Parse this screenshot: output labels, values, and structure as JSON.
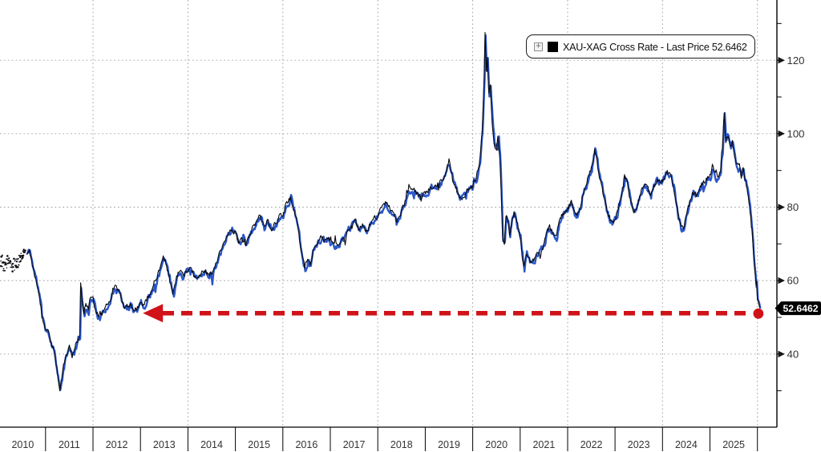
{
  "chart": {
    "legend": {
      "label": "XAU-XAG Cross Rate - Last Price 52.6462",
      "expand_glyph": "+",
      "swatch_color": "#000000"
    },
    "last_price_tag": "52.6462",
    "colors": {
      "series_black": "#08080e",
      "series_blue": "#2a57c8",
      "annotation_red": "#cf1318",
      "grid": "#9b9b9b",
      "axis": "#000000",
      "tick_label": "#333333",
      "tag_bg": "#000000",
      "tag_fg": "#ffffff"
    }
  },
  "chart_data": {
    "type": "line",
    "title": "XAU-XAG Cross Rate",
    "xlabel": "",
    "ylabel": "",
    "grid": "dotted",
    "legend_position": "top-right",
    "x_ticks": [
      "2010",
      "2011",
      "2012",
      "2013",
      "2014",
      "2015",
      "2016",
      "2017",
      "2018",
      "2019",
      "2020",
      "2021",
      "2022",
      "2023",
      "2024",
      "2025"
    ],
    "y_ticks": [
      40,
      60,
      80,
      100,
      120
    ],
    "y_minor_ticks": [
      30,
      50,
      70,
      90,
      110,
      130
    ],
    "xlim": [
      2010.04,
      2026.41
    ],
    "ylim": [
      20.1,
      136.4
    ],
    "annotations": [
      {
        "type": "dashed-arrow-left",
        "level": 52.6462,
        "from_year": 2026.0,
        "to_year": 2013.05
      },
      {
        "type": "endpoint-dot",
        "level": 52.6462,
        "year": 2026.02
      },
      {
        "type": "axis-price-label",
        "text": "52.6462"
      }
    ],
    "series": [
      {
        "name": "XAU-XAG Cross Rate",
        "last_price": 52.6462,
        "scatter_until": 2010.59,
        "points": [
          [
            2010.04,
            64.0
          ],
          [
            2010.1,
            66.0
          ],
          [
            2010.16,
            63.5
          ],
          [
            2010.22,
            65.0
          ],
          [
            2010.28,
            65.5
          ],
          [
            2010.34,
            64.0
          ],
          [
            2010.4,
            66.0
          ],
          [
            2010.46,
            65.0
          ],
          [
            2010.52,
            66.5
          ],
          [
            2010.58,
            67.0
          ],
          [
            2010.6,
            67.5
          ],
          [
            2010.66,
            68.5
          ],
          [
            2010.72,
            64.5
          ],
          [
            2010.79,
            61.0
          ],
          [
            2010.86,
            56.5
          ],
          [
            2010.93,
            50.5
          ],
          [
            2011.0,
            47.0
          ],
          [
            2011.06,
            45.5
          ],
          [
            2011.12,
            43.0
          ],
          [
            2011.18,
            41.0
          ],
          [
            2011.24,
            36.0
          ],
          [
            2011.3,
            29.8
          ],
          [
            2011.34,
            33.5
          ],
          [
            2011.38,
            36.5
          ],
          [
            2011.44,
            40.0
          ],
          [
            2011.5,
            42.0
          ],
          [
            2011.56,
            39.5
          ],
          [
            2011.62,
            41.5
          ],
          [
            2011.68,
            44.0
          ],
          [
            2011.72,
            44.5
          ],
          [
            2011.74,
            59.0
          ],
          [
            2011.77,
            54.0
          ],
          [
            2011.81,
            51.0
          ],
          [
            2011.85,
            54.0
          ],
          [
            2011.9,
            52.0
          ],
          [
            2011.95,
            55.5
          ],
          [
            2012.0,
            55.0
          ],
          [
            2012.06,
            52.0
          ],
          [
            2012.12,
            50.0
          ],
          [
            2012.18,
            50.5
          ],
          [
            2012.25,
            52.5
          ],
          [
            2012.32,
            54.0
          ],
          [
            2012.4,
            56.5
          ],
          [
            2012.48,
            58.5
          ],
          [
            2012.55,
            57.0
          ],
          [
            2012.62,
            53.5
          ],
          [
            2012.7,
            52.5
          ],
          [
            2012.78,
            53.5
          ],
          [
            2012.85,
            51.5
          ],
          [
            2012.92,
            52.5
          ],
          [
            2013.0,
            54.5
          ],
          [
            2013.08,
            53.0
          ],
          [
            2013.16,
            55.5
          ],
          [
            2013.24,
            57.5
          ],
          [
            2013.32,
            60.5
          ],
          [
            2013.4,
            63.0
          ],
          [
            2013.48,
            66.0
          ],
          [
            2013.55,
            64.0
          ],
          [
            2013.62,
            60.0
          ],
          [
            2013.68,
            57.0
          ],
          [
            2013.75,
            60.5
          ],
          [
            2013.82,
            62.5
          ],
          [
            2013.9,
            61.5
          ],
          [
            2013.96,
            62.5
          ],
          [
            2014.04,
            63.5
          ],
          [
            2014.12,
            61.5
          ],
          [
            2014.2,
            60.5
          ],
          [
            2014.28,
            62.0
          ],
          [
            2014.36,
            63.0
          ],
          [
            2014.44,
            61.5
          ],
          [
            2014.52,
            62.5
          ],
          [
            2014.6,
            65.5
          ],
          [
            2014.68,
            68.0
          ],
          [
            2014.76,
            70.5
          ],
          [
            2014.84,
            73.0
          ],
          [
            2014.92,
            74.5
          ],
          [
            2015.0,
            73.0
          ],
          [
            2015.07,
            70.5
          ],
          [
            2015.14,
            71.5
          ],
          [
            2015.22,
            70.5
          ],
          [
            2015.3,
            72.5
          ],
          [
            2015.38,
            74.5
          ],
          [
            2015.46,
            76.5
          ],
          [
            2015.52,
            77.5
          ],
          [
            2015.6,
            74.5
          ],
          [
            2015.68,
            76.5
          ],
          [
            2015.76,
            73.5
          ],
          [
            2015.84,
            75.0
          ],
          [
            2015.92,
            77.0
          ],
          [
            2016.0,
            78.0
          ],
          [
            2016.08,
            80.5
          ],
          [
            2016.16,
            82.8
          ],
          [
            2016.24,
            79.5
          ],
          [
            2016.32,
            74.5
          ],
          [
            2016.4,
            67.0
          ],
          [
            2016.46,
            63.5
          ],
          [
            2016.52,
            65.5
          ],
          [
            2016.58,
            64.5
          ],
          [
            2016.64,
            68.5
          ],
          [
            2016.72,
            70.5
          ],
          [
            2016.8,
            71.5
          ],
          [
            2016.88,
            71.0
          ],
          [
            2016.96,
            71.0
          ],
          [
            2017.04,
            70.0
          ],
          [
            2017.12,
            69.5
          ],
          [
            2017.2,
            70.5
          ],
          [
            2017.28,
            71.5
          ],
          [
            2017.36,
            73.5
          ],
          [
            2017.44,
            75.0
          ],
          [
            2017.52,
            76.5
          ],
          [
            2017.6,
            74.0
          ],
          [
            2017.68,
            75.0
          ],
          [
            2017.76,
            73.5
          ],
          [
            2017.84,
            75.5
          ],
          [
            2017.92,
            77.0
          ],
          [
            2018.0,
            77.5
          ],
          [
            2018.08,
            79.5
          ],
          [
            2018.16,
            81.0
          ],
          [
            2018.24,
            80.0
          ],
          [
            2018.32,
            78.0
          ],
          [
            2018.4,
            76.0
          ],
          [
            2018.48,
            78.5
          ],
          [
            2018.56,
            81.0
          ],
          [
            2018.64,
            83.5
          ],
          [
            2018.72,
            85.5
          ],
          [
            2018.8,
            84.0
          ],
          [
            2018.88,
            83.0
          ],
          [
            2018.96,
            83.5
          ],
          [
            2019.04,
            84.0
          ],
          [
            2019.12,
            85.5
          ],
          [
            2019.2,
            86.0
          ],
          [
            2019.28,
            86.5
          ],
          [
            2019.36,
            87.5
          ],
          [
            2019.44,
            89.5
          ],
          [
            2019.5,
            92.5
          ],
          [
            2019.56,
            89.0
          ],
          [
            2019.64,
            85.5
          ],
          [
            2019.71,
            83.0
          ],
          [
            2019.78,
            82.5
          ],
          [
            2019.85,
            84.0
          ],
          [
            2019.92,
            85.0
          ],
          [
            2020.0,
            85.5
          ],
          [
            2020.08,
            88.5
          ],
          [
            2020.15,
            93.0
          ],
          [
            2020.2,
            101.0
          ],
          [
            2020.24,
            115.0
          ],
          [
            2020.26,
            127.5
          ],
          [
            2020.29,
            117.0
          ],
          [
            2020.31,
            121.0
          ],
          [
            2020.34,
            111.0
          ],
          [
            2020.37,
            113.5
          ],
          [
            2020.41,
            103.0
          ],
          [
            2020.45,
            98.0
          ],
          [
            2020.49,
            96.5
          ],
          [
            2020.53,
            99.0
          ],
          [
            2020.57,
            94.0
          ],
          [
            2020.6,
            84.0
          ],
          [
            2020.63,
            71.5
          ],
          [
            2020.67,
            70.0
          ],
          [
            2020.7,
            78.0
          ],
          [
            2020.74,
            76.5
          ],
          [
            2020.78,
            73.0
          ],
          [
            2020.82,
            76.5
          ],
          [
            2020.87,
            78.5
          ],
          [
            2020.92,
            76.0
          ],
          [
            2020.96,
            73.0
          ],
          [
            2021.0,
            71.5
          ],
          [
            2021.04,
            67.5
          ],
          [
            2021.08,
            63.5
          ],
          [
            2021.13,
            67.5
          ],
          [
            2021.18,
            65.5
          ],
          [
            2021.24,
            64.5
          ],
          [
            2021.3,
            66.0
          ],
          [
            2021.36,
            67.5
          ],
          [
            2021.42,
            68.0
          ],
          [
            2021.48,
            69.5
          ],
          [
            2021.55,
            72.5
          ],
          [
            2021.62,
            74.5
          ],
          [
            2021.69,
            73.0
          ],
          [
            2021.76,
            72.0
          ],
          [
            2021.83,
            76.5
          ],
          [
            2021.9,
            78.0
          ],
          [
            2021.96,
            79.0
          ],
          [
            2022.02,
            80.0
          ],
          [
            2022.08,
            81.5
          ],
          [
            2022.14,
            78.5
          ],
          [
            2022.2,
            77.5
          ],
          [
            2022.27,
            80.5
          ],
          [
            2022.34,
            84.5
          ],
          [
            2022.42,
            87.5
          ],
          [
            2022.5,
            90.5
          ],
          [
            2022.57,
            95.5
          ],
          [
            2022.62,
            92.5
          ],
          [
            2022.67,
            88.5
          ],
          [
            2022.73,
            85.5
          ],
          [
            2022.8,
            80.5
          ],
          [
            2022.87,
            77.5
          ],
          [
            2022.93,
            75.5
          ],
          [
            2023.0,
            77.0
          ],
          [
            2023.07,
            79.5
          ],
          [
            2023.14,
            84.0
          ],
          [
            2023.2,
            89.0
          ],
          [
            2023.26,
            86.5
          ],
          [
            2023.33,
            81.5
          ],
          [
            2023.4,
            78.5
          ],
          [
            2023.47,
            81.0
          ],
          [
            2023.54,
            84.0
          ],
          [
            2023.61,
            86.5
          ],
          [
            2023.68,
            85.0
          ],
          [
            2023.75,
            83.5
          ],
          [
            2023.82,
            86.5
          ],
          [
            2023.89,
            87.5
          ],
          [
            2023.96,
            86.5
          ],
          [
            2024.03,
            88.0
          ],
          [
            2024.1,
            89.5
          ],
          [
            2024.17,
            88.5
          ],
          [
            2024.24,
            85.5
          ],
          [
            2024.31,
            79.0
          ],
          [
            2024.38,
            74.5
          ],
          [
            2024.44,
            73.5
          ],
          [
            2024.5,
            78.0
          ],
          [
            2024.57,
            81.0
          ],
          [
            2024.64,
            84.5
          ],
          [
            2024.71,
            83.0
          ],
          [
            2024.78,
            84.5
          ],
          [
            2024.85,
            86.5
          ],
          [
            2024.92,
            87.5
          ],
          [
            2025.0,
            89.0
          ],
          [
            2025.05,
            90.5
          ],
          [
            2025.1,
            89.0
          ],
          [
            2025.16,
            87.5
          ],
          [
            2025.22,
            90.0
          ],
          [
            2025.26,
            95.0
          ],
          [
            2025.3,
            105.8
          ],
          [
            2025.33,
            98.0
          ],
          [
            2025.38,
            100.0
          ],
          [
            2025.43,
            96.5
          ],
          [
            2025.47,
            98.0
          ],
          [
            2025.52,
            93.5
          ],
          [
            2025.57,
            90.5
          ],
          [
            2025.62,
            91.5
          ],
          [
            2025.66,
            88.5
          ],
          [
            2025.7,
            90.5
          ],
          [
            2025.74,
            87.5
          ],
          [
            2025.78,
            85.5
          ],
          [
            2025.82,
            82.0
          ],
          [
            2025.86,
            77.0
          ],
          [
            2025.9,
            70.0
          ],
          [
            2025.94,
            63.0
          ],
          [
            2025.97,
            58.0
          ],
          [
            2025.98,
            60.0
          ],
          [
            2026.0,
            55.5
          ],
          [
            2026.03,
            53.5
          ],
          [
            2026.05,
            52.65
          ]
        ]
      }
    ]
  }
}
